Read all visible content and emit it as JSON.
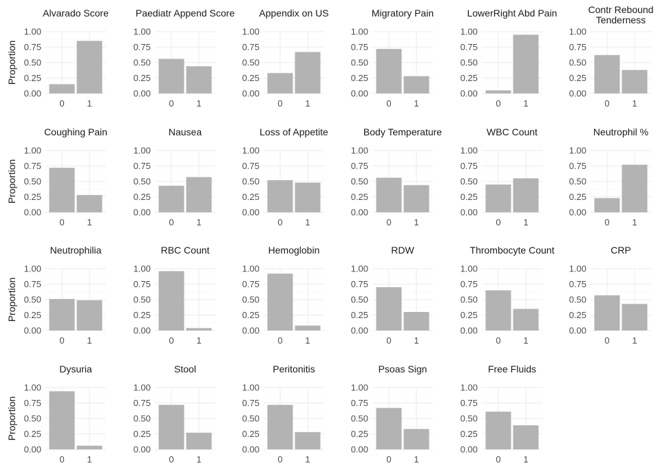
{
  "chart_data": {
    "type": "bar",
    "layout": "faceted-grid",
    "ylabel": "Proportion",
    "ylim": [
      0,
      1
    ],
    "yticks": [
      "0.00",
      "0.25",
      "0.50",
      "0.75",
      "1.00"
    ],
    "categories": [
      "0",
      "1"
    ],
    "bar_color": "#b3b3b3",
    "grid": true,
    "panels": [
      {
        "title": "Alvarado Score",
        "values": [
          0.15,
          0.85
        ]
      },
      {
        "title": "Paediatr Append Score",
        "values": [
          0.56,
          0.44
        ]
      },
      {
        "title": "Appendix on US",
        "values": [
          0.33,
          0.67
        ]
      },
      {
        "title": "Migratory Pain",
        "values": [
          0.72,
          0.28
        ]
      },
      {
        "title": "LowerRight Abd Pain",
        "values": [
          0.05,
          0.95
        ]
      },
      {
        "title": "Contr Rebound\nTenderness",
        "values": [
          0.62,
          0.38
        ]
      },
      {
        "title": "Coughing Pain",
        "values": [
          0.72,
          0.28
        ]
      },
      {
        "title": "Nausea",
        "values": [
          0.43,
          0.57
        ]
      },
      {
        "title": "Loss of Appetite",
        "values": [
          0.52,
          0.48
        ]
      },
      {
        "title": "Body Temperature",
        "values": [
          0.56,
          0.44
        ]
      },
      {
        "title": "WBC Count",
        "values": [
          0.45,
          0.55
        ]
      },
      {
        "title": "Neutrophil %",
        "values": [
          0.23,
          0.77
        ]
      },
      {
        "title": "Neutrophilia",
        "values": [
          0.51,
          0.49
        ]
      },
      {
        "title": "RBC Count",
        "values": [
          0.96,
          0.04
        ]
      },
      {
        "title": "Hemoglobin",
        "values": [
          0.92,
          0.08
        ]
      },
      {
        "title": "RDW",
        "values": [
          0.7,
          0.3
        ]
      },
      {
        "title": "Thrombocyte Count",
        "values": [
          0.65,
          0.35
        ]
      },
      {
        "title": "CRP",
        "values": [
          0.57,
          0.43
        ]
      },
      {
        "title": "Dysuria",
        "values": [
          0.94,
          0.06
        ]
      },
      {
        "title": "Stool",
        "values": [
          0.72,
          0.27
        ]
      },
      {
        "title": "Peritonitis",
        "values": [
          0.72,
          0.28
        ]
      },
      {
        "title": "Psoas Sign",
        "values": [
          0.67,
          0.33
        ]
      },
      {
        "title": "Free Fluids",
        "values": [
          0.61,
          0.39
        ]
      }
    ]
  }
}
